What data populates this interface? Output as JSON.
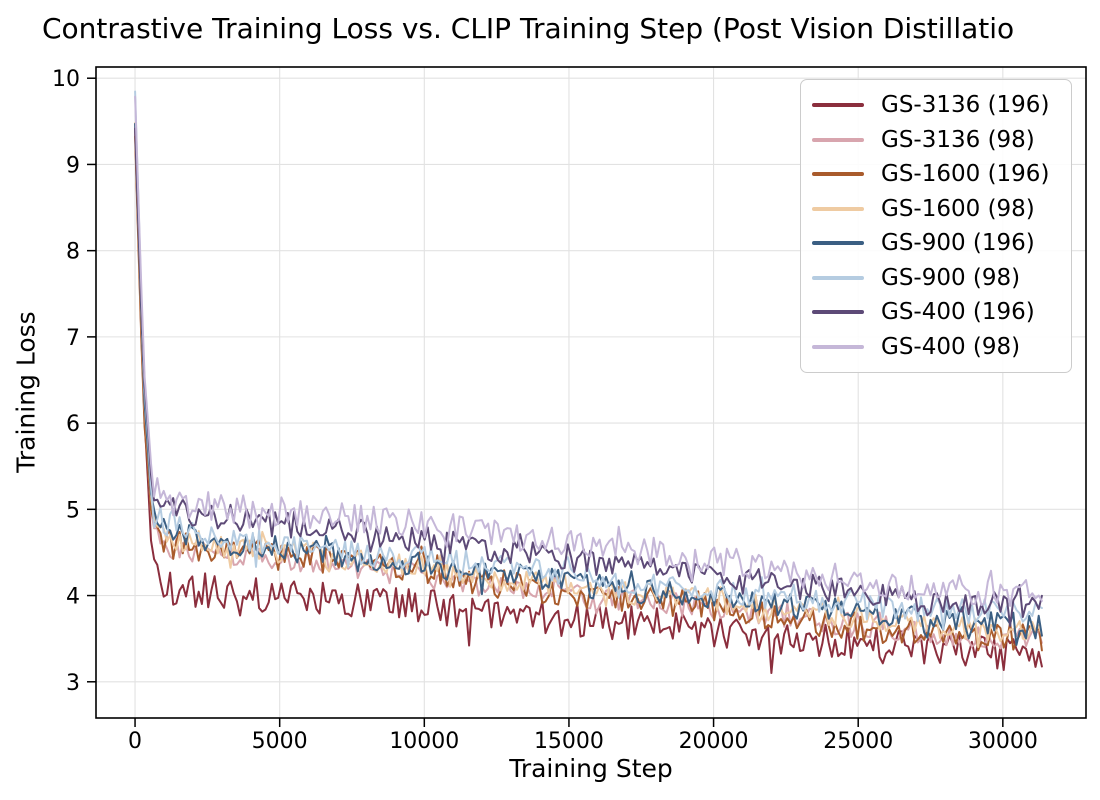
{
  "chart_data": {
    "type": "line",
    "title": "Contrastive Training Loss vs. CLIP Training Step (Post Vision Distillatio",
    "xlabel": "Training Step",
    "ylabel": "Training Loss",
    "x_ticks": [
      0,
      5000,
      10000,
      15000,
      20000,
      25000,
      30000
    ],
    "y_ticks": [
      3,
      4,
      5,
      6,
      7,
      8,
      9,
      10
    ],
    "xlim": [
      -1350,
      32875
    ],
    "ylim": [
      2.58,
      10.13
    ],
    "grid": true,
    "legend_position": "upper right",
    "x_max_data": 31350,
    "series": [
      {
        "name": "GS-3136 (196)",
        "color": "#8B2E3D",
        "noise": 0.2,
        "trend": [
          [
            0,
            9.35
          ],
          [
            300,
            6.2
          ],
          [
            600,
            4.35
          ],
          [
            1000,
            4.1
          ],
          [
            2000,
            4.08
          ],
          [
            4000,
            4.02
          ],
          [
            6000,
            3.98
          ],
          [
            8000,
            3.95
          ],
          [
            10000,
            3.88
          ],
          [
            12000,
            3.8
          ],
          [
            14000,
            3.74
          ],
          [
            16000,
            3.7
          ],
          [
            18000,
            3.66
          ],
          [
            20000,
            3.6
          ],
          [
            22000,
            3.52
          ],
          [
            24000,
            3.47
          ],
          [
            26000,
            3.42
          ],
          [
            28000,
            3.36
          ],
          [
            31350,
            3.28
          ]
        ]
      },
      {
        "name": "GS-3136 (98)",
        "color": "#D8A5AE",
        "noise": 0.14,
        "trend": [
          [
            0,
            9.4
          ],
          [
            300,
            6.3
          ],
          [
            600,
            4.75
          ],
          [
            1000,
            4.55
          ],
          [
            2000,
            4.52
          ],
          [
            4000,
            4.48
          ],
          [
            6000,
            4.4
          ],
          [
            8000,
            4.32
          ],
          [
            10000,
            4.22
          ],
          [
            12000,
            4.12
          ],
          [
            14000,
            4.04
          ],
          [
            16000,
            3.98
          ],
          [
            18000,
            3.92
          ],
          [
            20000,
            3.84
          ],
          [
            22000,
            3.76
          ],
          [
            24000,
            3.68
          ],
          [
            26000,
            3.62
          ],
          [
            28000,
            3.56
          ],
          [
            31350,
            3.48
          ]
        ]
      },
      {
        "name": "GS-1600 (196)",
        "color": "#A95B2C",
        "noise": 0.17,
        "trend": [
          [
            0,
            9.3
          ],
          [
            300,
            6.1
          ],
          [
            600,
            4.8
          ],
          [
            1000,
            4.62
          ],
          [
            2000,
            4.55
          ],
          [
            4000,
            4.5
          ],
          [
            6000,
            4.42
          ],
          [
            8000,
            4.35
          ],
          [
            10000,
            4.26
          ],
          [
            12000,
            4.16
          ],
          [
            14000,
            4.08
          ],
          [
            16000,
            4.0
          ],
          [
            18000,
            3.94
          ],
          [
            20000,
            3.86
          ],
          [
            22000,
            3.76
          ],
          [
            24000,
            3.68
          ],
          [
            26000,
            3.6
          ],
          [
            28000,
            3.55
          ],
          [
            31350,
            3.5
          ]
        ]
      },
      {
        "name": "GS-1600 (98)",
        "color": "#EFCBA2",
        "noise": 0.14,
        "trend": [
          [
            0,
            9.45
          ],
          [
            300,
            6.35
          ],
          [
            600,
            4.88
          ],
          [
            1000,
            4.7
          ],
          [
            2000,
            4.62
          ],
          [
            4000,
            4.55
          ],
          [
            6000,
            4.48
          ],
          [
            8000,
            4.4
          ],
          [
            10000,
            4.32
          ],
          [
            12000,
            4.22
          ],
          [
            14000,
            4.14
          ],
          [
            16000,
            4.06
          ],
          [
            18000,
            4.0
          ],
          [
            20000,
            3.94
          ],
          [
            22000,
            3.86
          ],
          [
            24000,
            3.78
          ],
          [
            26000,
            3.7
          ],
          [
            28000,
            3.64
          ],
          [
            31350,
            3.58
          ]
        ]
      },
      {
        "name": "GS-900 (196)",
        "color": "#3B5F83",
        "noise": 0.15,
        "trend": [
          [
            0,
            9.5
          ],
          [
            300,
            6.4
          ],
          [
            600,
            4.95
          ],
          [
            1000,
            4.76
          ],
          [
            2000,
            4.66
          ],
          [
            4000,
            4.58
          ],
          [
            6000,
            4.5
          ],
          [
            8000,
            4.44
          ],
          [
            10000,
            4.36
          ],
          [
            12000,
            4.27
          ],
          [
            14000,
            4.18
          ],
          [
            16000,
            4.1
          ],
          [
            18000,
            4.04
          ],
          [
            20000,
            3.98
          ],
          [
            22000,
            3.92
          ],
          [
            24000,
            3.84
          ],
          [
            26000,
            3.76
          ],
          [
            28000,
            3.7
          ],
          [
            31350,
            3.64
          ]
        ]
      },
      {
        "name": "GS-900 (98)",
        "color": "#B5CCE1",
        "noise": 0.15,
        "trend": [
          [
            0,
            9.85
          ],
          [
            300,
            6.55
          ],
          [
            600,
            5.02
          ],
          [
            1000,
            4.82
          ],
          [
            2000,
            4.72
          ],
          [
            4000,
            4.62
          ],
          [
            6000,
            4.54
          ],
          [
            8000,
            4.48
          ],
          [
            10000,
            4.44
          ],
          [
            12000,
            4.36
          ],
          [
            14000,
            4.28
          ],
          [
            16000,
            4.2
          ],
          [
            18000,
            4.12
          ],
          [
            20000,
            4.05
          ],
          [
            22000,
            4.0
          ],
          [
            24000,
            3.95
          ],
          [
            26000,
            3.88
          ],
          [
            28000,
            3.83
          ],
          [
            31350,
            3.78
          ]
        ]
      },
      {
        "name": "GS-400 (196)",
        "color": "#5D4A77",
        "noise": 0.16,
        "trend": [
          [
            0,
            9.42
          ],
          [
            300,
            6.6
          ],
          [
            600,
            5.18
          ],
          [
            1000,
            5.0
          ],
          [
            2000,
            4.94
          ],
          [
            4000,
            4.87
          ],
          [
            6000,
            4.8
          ],
          [
            8000,
            4.74
          ],
          [
            10000,
            4.66
          ],
          [
            12000,
            4.56
          ],
          [
            14000,
            4.47
          ],
          [
            16000,
            4.4
          ],
          [
            18000,
            4.33
          ],
          [
            20000,
            4.25
          ],
          [
            22000,
            4.15
          ],
          [
            24000,
            4.07
          ],
          [
            26000,
            4.0
          ],
          [
            28000,
            3.95
          ],
          [
            31350,
            3.88
          ]
        ]
      },
      {
        "name": "GS-400 (98)",
        "color": "#C5B7D8",
        "noise": 0.17,
        "trend": [
          [
            0,
            9.8
          ],
          [
            300,
            6.7
          ],
          [
            600,
            5.3
          ],
          [
            1000,
            5.1
          ],
          [
            2000,
            5.05
          ],
          [
            4000,
            5.0
          ],
          [
            6000,
            4.94
          ],
          [
            8000,
            4.88
          ],
          [
            10000,
            4.82
          ],
          [
            12000,
            4.74
          ],
          [
            14000,
            4.64
          ],
          [
            16000,
            4.56
          ],
          [
            18000,
            4.5
          ],
          [
            20000,
            4.42
          ],
          [
            22000,
            4.3
          ],
          [
            24000,
            4.22
          ],
          [
            26000,
            4.14
          ],
          [
            28000,
            4.08
          ],
          [
            31350,
            4.02
          ]
        ]
      }
    ]
  },
  "style": {
    "grid_color": "#e2e2e2",
    "spine_color": "#000000",
    "tick_color": "#000000",
    "background": "#ffffff"
  }
}
